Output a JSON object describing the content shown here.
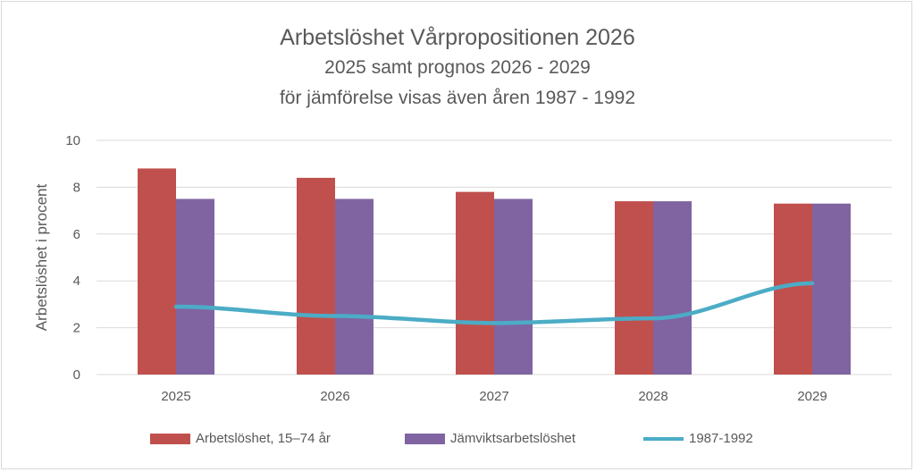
{
  "chart_data": {
    "type": "bar",
    "title": "Arbetslöshet Vårpropositionen 2026",
    "subtitle": [
      "2025 samt prognos 2026 - 2029",
      "för jämförelse visas även åren 1987 - 1992"
    ],
    "xlabel": "",
    "ylabel": "Arbetslöshet i procent",
    "ylim": [
      0,
      10
    ],
    "yticks": [
      "0",
      "2",
      "4",
      "6",
      "8",
      "10"
    ],
    "grid": true,
    "legend_position": "bottom",
    "categories": [
      "2025",
      "2026",
      "2027",
      "2028",
      "2029"
    ],
    "series": [
      {
        "name": "Arbetslöshet, 15–74 år",
        "type": "bar",
        "color": "#c0504d",
        "values": [
          8.8,
          8.4,
          7.8,
          7.4,
          7.3
        ]
      },
      {
        "name": "Jämviktsarbetslöshet",
        "type": "bar",
        "color": "#8064a2",
        "values": [
          7.5,
          7.5,
          7.5,
          7.4,
          7.3
        ]
      },
      {
        "name": "1987-1992",
        "type": "line",
        "color": "#4bacc6",
        "values": [
          2.9,
          2.5,
          2.2,
          2.4,
          3.9
        ]
      }
    ]
  }
}
